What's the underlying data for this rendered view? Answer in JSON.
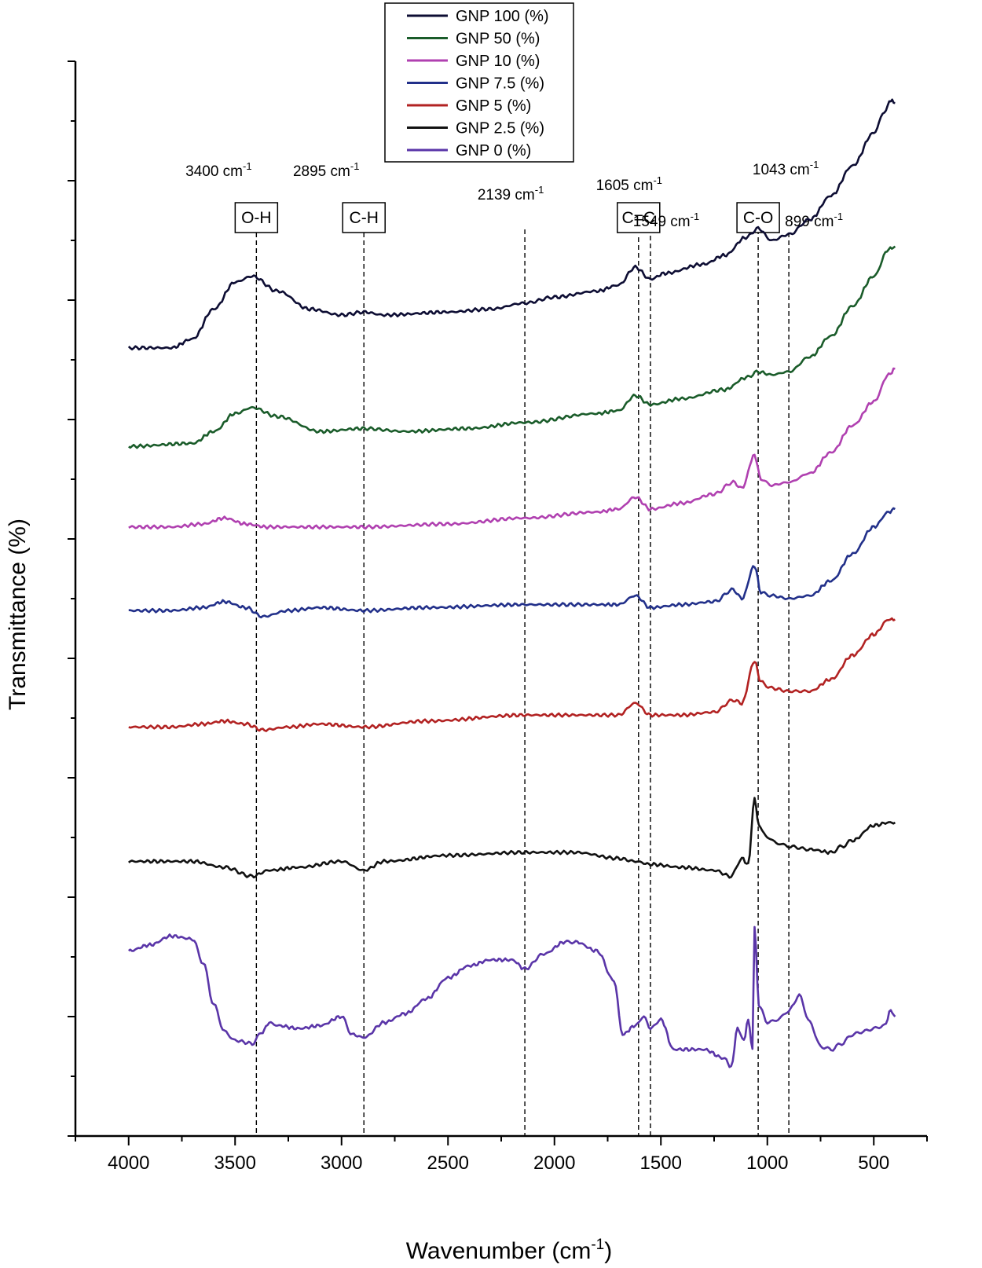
{
  "chart_data": {
    "type": "line",
    "title": "",
    "xlabel": "Wavenumber (cm",
    "xlabel_sup": "-1",
    "xlabel_close": ")",
    "ylabel": "Transmittance (%)",
    "xlim": [
      4250,
      250
    ],
    "ylim": [
      0,
      18
    ],
    "x_ticks": [
      4000,
      3500,
      3000,
      2500,
      2000,
      1500,
      1000,
      500
    ],
    "grid": false,
    "legend_position": "top-center",
    "series": [
      {
        "name": "GNP 100 (%)",
        "color": "#0d0d33",
        "points": [
          [
            4000,
            13.2
          ],
          [
            3800,
            13.2
          ],
          [
            3700,
            13.35
          ],
          [
            3600,
            13.85
          ],
          [
            3500,
            14.3
          ],
          [
            3420,
            14.4
          ],
          [
            3300,
            14.15
          ],
          [
            3150,
            13.85
          ],
          [
            3000,
            13.75
          ],
          [
            2895,
            13.8
          ],
          [
            2800,
            13.75
          ],
          [
            2500,
            13.8
          ],
          [
            2300,
            13.85
          ],
          [
            2139,
            13.95
          ],
          [
            2000,
            14.05
          ],
          [
            1800,
            14.15
          ],
          [
            1700,
            14.25
          ],
          [
            1620,
            14.55
          ],
          [
            1549,
            14.35
          ],
          [
            1480,
            14.45
          ],
          [
            1300,
            14.6
          ],
          [
            1200,
            14.75
          ],
          [
            1100,
            15.05
          ],
          [
            1043,
            15.2
          ],
          [
            980,
            15.0
          ],
          [
            899,
            15.1
          ],
          [
            800,
            15.35
          ],
          [
            700,
            15.75
          ],
          [
            600,
            16.25
          ],
          [
            500,
            16.8
          ],
          [
            450,
            17.15
          ],
          [
            420,
            17.35
          ],
          [
            400,
            17.3
          ]
        ]
      },
      {
        "name": "GNP 50 (%)",
        "color": "#1a5c2a",
        "points": [
          [
            4000,
            11.55
          ],
          [
            3700,
            11.6
          ],
          [
            3600,
            11.8
          ],
          [
            3500,
            12.1
          ],
          [
            3420,
            12.2
          ],
          [
            3300,
            12.05
          ],
          [
            3100,
            11.8
          ],
          [
            2895,
            11.85
          ],
          [
            2700,
            11.8
          ],
          [
            2400,
            11.85
          ],
          [
            2139,
            11.95
          ],
          [
            1800,
            12.1
          ],
          [
            1700,
            12.15
          ],
          [
            1620,
            12.4
          ],
          [
            1549,
            12.25
          ],
          [
            1400,
            12.35
          ],
          [
            1200,
            12.5
          ],
          [
            1100,
            12.7
          ],
          [
            1043,
            12.8
          ],
          [
            980,
            12.75
          ],
          [
            899,
            12.8
          ],
          [
            800,
            13.05
          ],
          [
            700,
            13.4
          ],
          [
            600,
            13.9
          ],
          [
            500,
            14.4
          ],
          [
            430,
            14.85
          ],
          [
            400,
            14.9
          ]
        ]
      },
      {
        "name": "GNP 10 (%)",
        "color": "#b040b0",
        "points": [
          [
            4000,
            10.2
          ],
          [
            3800,
            10.2
          ],
          [
            3650,
            10.25
          ],
          [
            3550,
            10.35
          ],
          [
            3450,
            10.25
          ],
          [
            3350,
            10.2
          ],
          [
            2895,
            10.2
          ],
          [
            2500,
            10.25
          ],
          [
            2139,
            10.35
          ],
          [
            1800,
            10.45
          ],
          [
            1700,
            10.5
          ],
          [
            1620,
            10.7
          ],
          [
            1549,
            10.5
          ],
          [
            1400,
            10.6
          ],
          [
            1250,
            10.75
          ],
          [
            1160,
            10.95
          ],
          [
            1120,
            10.85
          ],
          [
            1060,
            11.4
          ],
          [
            1030,
            11.0
          ],
          [
            980,
            10.9
          ],
          [
            899,
            10.95
          ],
          [
            800,
            11.1
          ],
          [
            700,
            11.45
          ],
          [
            600,
            11.9
          ],
          [
            500,
            12.3
          ],
          [
            430,
            12.75
          ],
          [
            400,
            12.85
          ]
        ]
      },
      {
        "name": "GNP 7.5 (%)",
        "color": "#22308a",
        "points": [
          [
            4000,
            8.8
          ],
          [
            3800,
            8.8
          ],
          [
            3650,
            8.85
          ],
          [
            3550,
            8.95
          ],
          [
            3450,
            8.85
          ],
          [
            3370,
            8.7
          ],
          [
            3250,
            8.8
          ],
          [
            3100,
            8.85
          ],
          [
            2895,
            8.8
          ],
          [
            2600,
            8.85
          ],
          [
            2139,
            8.9
          ],
          [
            1800,
            8.9
          ],
          [
            1700,
            8.9
          ],
          [
            1620,
            9.05
          ],
          [
            1549,
            8.85
          ],
          [
            1400,
            8.9
          ],
          [
            1250,
            8.95
          ],
          [
            1160,
            9.15
          ],
          [
            1120,
            9.0
          ],
          [
            1060,
            9.55
          ],
          [
            1030,
            9.1
          ],
          [
            980,
            9.05
          ],
          [
            899,
            9.0
          ],
          [
            800,
            9.05
          ],
          [
            700,
            9.3
          ],
          [
            600,
            9.75
          ],
          [
            500,
            10.2
          ],
          [
            430,
            10.45
          ],
          [
            400,
            10.5
          ]
        ]
      },
      {
        "name": "GNP 5 (%)",
        "color": "#b22222",
        "points": [
          [
            4000,
            6.85
          ],
          [
            3800,
            6.85
          ],
          [
            3650,
            6.9
          ],
          [
            3550,
            6.95
          ],
          [
            3450,
            6.9
          ],
          [
            3370,
            6.8
          ],
          [
            3250,
            6.85
          ],
          [
            3100,
            6.9
          ],
          [
            2895,
            6.85
          ],
          [
            2600,
            6.95
          ],
          [
            2139,
            7.05
          ],
          [
            1900,
            7.05
          ],
          [
            1700,
            7.05
          ],
          [
            1620,
            7.25
          ],
          [
            1549,
            7.05
          ],
          [
            1400,
            7.05
          ],
          [
            1250,
            7.1
          ],
          [
            1160,
            7.3
          ],
          [
            1120,
            7.25
          ],
          [
            1060,
            7.95
          ],
          [
            1030,
            7.6
          ],
          [
            980,
            7.5
          ],
          [
            899,
            7.45
          ],
          [
            800,
            7.45
          ],
          [
            700,
            7.65
          ],
          [
            600,
            8.05
          ],
          [
            500,
            8.4
          ],
          [
            430,
            8.65
          ],
          [
            400,
            8.65
          ]
        ]
      },
      {
        "name": "GNP 2.5 (%)",
        "color": "#111111",
        "points": [
          [
            4000,
            4.6
          ],
          [
            3700,
            4.6
          ],
          [
            3550,
            4.5
          ],
          [
            3420,
            4.35
          ],
          [
            3340,
            4.45
          ],
          [
            3200,
            4.5
          ],
          [
            3000,
            4.6
          ],
          [
            2895,
            4.45
          ],
          [
            2800,
            4.6
          ],
          [
            2500,
            4.7
          ],
          [
            2139,
            4.75
          ],
          [
            1900,
            4.75
          ],
          [
            1700,
            4.65
          ],
          [
            1620,
            4.6
          ],
          [
            1549,
            4.55
          ],
          [
            1400,
            4.5
          ],
          [
            1250,
            4.45
          ],
          [
            1170,
            4.35
          ],
          [
            1120,
            4.65
          ],
          [
            1090,
            4.55
          ],
          [
            1060,
            5.65
          ],
          [
            1040,
            5.2
          ],
          [
            1000,
            5.0
          ],
          [
            950,
            4.9
          ],
          [
            899,
            4.85
          ],
          [
            800,
            4.8
          ],
          [
            700,
            4.75
          ],
          [
            650,
            4.85
          ],
          [
            600,
            4.95
          ],
          [
            500,
            5.2
          ],
          [
            430,
            5.25
          ],
          [
            400,
            5.25
          ]
        ]
      },
      {
        "name": "GNP 0 (%)",
        "color": "#5a35a8",
        "points": [
          [
            4000,
            3.1
          ],
          [
            3900,
            3.2
          ],
          [
            3800,
            3.35
          ],
          [
            3700,
            3.3
          ],
          [
            3650,
            2.9
          ],
          [
            3600,
            2.2
          ],
          [
            3550,
            1.75
          ],
          [
            3500,
            1.6
          ],
          [
            3420,
            1.55
          ],
          [
            3370,
            1.75
          ],
          [
            3340,
            1.9
          ],
          [
            3300,
            1.85
          ],
          [
            3200,
            1.8
          ],
          [
            3100,
            1.85
          ],
          [
            3000,
            2.0
          ],
          [
            2950,
            1.7
          ],
          [
            2895,
            1.65
          ],
          [
            2800,
            1.9
          ],
          [
            2700,
            2.05
          ],
          [
            2600,
            2.3
          ],
          [
            2500,
            2.65
          ],
          [
            2400,
            2.85
          ],
          [
            2300,
            2.95
          ],
          [
            2200,
            2.95
          ],
          [
            2139,
            2.8
          ],
          [
            2050,
            3.05
          ],
          [
            1950,
            3.25
          ],
          [
            1900,
            3.25
          ],
          [
            1800,
            3.1
          ],
          [
            1720,
            2.6
          ],
          [
            1680,
            1.7
          ],
          [
            1620,
            1.85
          ],
          [
            1580,
            2.0
          ],
          [
            1549,
            1.8
          ],
          [
            1500,
            1.95
          ],
          [
            1440,
            1.45
          ],
          [
            1300,
            1.45
          ],
          [
            1200,
            1.3
          ],
          [
            1170,
            1.15
          ],
          [
            1140,
            1.8
          ],
          [
            1110,
            1.6
          ],
          [
            1090,
            1.95
          ],
          [
            1070,
            1.45
          ],
          [
            1060,
            3.5
          ],
          [
            1040,
            2.2
          ],
          [
            1000,
            1.9
          ],
          [
            950,
            1.95
          ],
          [
            899,
            2.1
          ],
          [
            850,
            2.35
          ],
          [
            800,
            1.9
          ],
          [
            750,
            1.5
          ],
          [
            700,
            1.45
          ],
          [
            650,
            1.55
          ],
          [
            600,
            1.7
          ],
          [
            550,
            1.75
          ],
          [
            500,
            1.8
          ],
          [
            450,
            1.85
          ],
          [
            420,
            2.1
          ],
          [
            400,
            2.0
          ]
        ]
      }
    ],
    "annotations": [
      {
        "wavenumber": 3400,
        "label": "3400 cm",
        "sup": "-1",
        "bond": "O-H"
      },
      {
        "wavenumber": 2895,
        "label": "2895 cm",
        "sup": "-1",
        "bond": "C-H"
      },
      {
        "wavenumber": 2139,
        "label": "2139 cm",
        "sup": "-1",
        "bond": ""
      },
      {
        "wavenumber": 1605,
        "label": "1605 cm",
        "sup": "-1",
        "bond": "C=C"
      },
      {
        "wavenumber": 1549,
        "label": "1549 cm",
        "sup": "-1",
        "bond": ""
      },
      {
        "wavenumber": 1043,
        "label": "1043 cm",
        "sup": "-1",
        "bond": "C-O"
      },
      {
        "wavenumber": 899,
        "label": "899 cm",
        "sup": "-1",
        "bond": ""
      }
    ]
  }
}
